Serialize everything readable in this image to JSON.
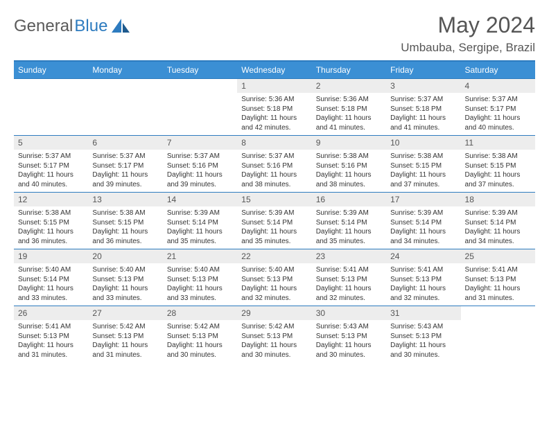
{
  "logo": {
    "part1": "General",
    "part2": "Blue"
  },
  "title": "May 2024",
  "location": "Umbauba, Sergipe, Brazil",
  "colors": {
    "header_bg": "#3b8fd4",
    "border": "#2d7bbf",
    "daynum_bg": "#ededed",
    "text": "#333333",
    "muted": "#555555"
  },
  "weekdays": [
    "Sunday",
    "Monday",
    "Tuesday",
    "Wednesday",
    "Thursday",
    "Friday",
    "Saturday"
  ],
  "weeks": [
    [
      {
        "n": "",
        "sr": "",
        "ss": "",
        "dl": "",
        "empty": true
      },
      {
        "n": "",
        "sr": "",
        "ss": "",
        "dl": "",
        "empty": true
      },
      {
        "n": "",
        "sr": "",
        "ss": "",
        "dl": "",
        "empty": true
      },
      {
        "n": "1",
        "sr": "Sunrise: 5:36 AM",
        "ss": "Sunset: 5:18 PM",
        "dl": "Daylight: 11 hours and 42 minutes."
      },
      {
        "n": "2",
        "sr": "Sunrise: 5:36 AM",
        "ss": "Sunset: 5:18 PM",
        "dl": "Daylight: 11 hours and 41 minutes."
      },
      {
        "n": "3",
        "sr": "Sunrise: 5:37 AM",
        "ss": "Sunset: 5:18 PM",
        "dl": "Daylight: 11 hours and 41 minutes."
      },
      {
        "n": "4",
        "sr": "Sunrise: 5:37 AM",
        "ss": "Sunset: 5:17 PM",
        "dl": "Daylight: 11 hours and 40 minutes."
      }
    ],
    [
      {
        "n": "5",
        "sr": "Sunrise: 5:37 AM",
        "ss": "Sunset: 5:17 PM",
        "dl": "Daylight: 11 hours and 40 minutes."
      },
      {
        "n": "6",
        "sr": "Sunrise: 5:37 AM",
        "ss": "Sunset: 5:17 PM",
        "dl": "Daylight: 11 hours and 39 minutes."
      },
      {
        "n": "7",
        "sr": "Sunrise: 5:37 AM",
        "ss": "Sunset: 5:16 PM",
        "dl": "Daylight: 11 hours and 39 minutes."
      },
      {
        "n": "8",
        "sr": "Sunrise: 5:37 AM",
        "ss": "Sunset: 5:16 PM",
        "dl": "Daylight: 11 hours and 38 minutes."
      },
      {
        "n": "9",
        "sr": "Sunrise: 5:38 AM",
        "ss": "Sunset: 5:16 PM",
        "dl": "Daylight: 11 hours and 38 minutes."
      },
      {
        "n": "10",
        "sr": "Sunrise: 5:38 AM",
        "ss": "Sunset: 5:15 PM",
        "dl": "Daylight: 11 hours and 37 minutes."
      },
      {
        "n": "11",
        "sr": "Sunrise: 5:38 AM",
        "ss": "Sunset: 5:15 PM",
        "dl": "Daylight: 11 hours and 37 minutes."
      }
    ],
    [
      {
        "n": "12",
        "sr": "Sunrise: 5:38 AM",
        "ss": "Sunset: 5:15 PM",
        "dl": "Daylight: 11 hours and 36 minutes."
      },
      {
        "n": "13",
        "sr": "Sunrise: 5:38 AM",
        "ss": "Sunset: 5:15 PM",
        "dl": "Daylight: 11 hours and 36 minutes."
      },
      {
        "n": "14",
        "sr": "Sunrise: 5:39 AM",
        "ss": "Sunset: 5:14 PM",
        "dl": "Daylight: 11 hours and 35 minutes."
      },
      {
        "n": "15",
        "sr": "Sunrise: 5:39 AM",
        "ss": "Sunset: 5:14 PM",
        "dl": "Daylight: 11 hours and 35 minutes."
      },
      {
        "n": "16",
        "sr": "Sunrise: 5:39 AM",
        "ss": "Sunset: 5:14 PM",
        "dl": "Daylight: 11 hours and 35 minutes."
      },
      {
        "n": "17",
        "sr": "Sunrise: 5:39 AM",
        "ss": "Sunset: 5:14 PM",
        "dl": "Daylight: 11 hours and 34 minutes."
      },
      {
        "n": "18",
        "sr": "Sunrise: 5:39 AM",
        "ss": "Sunset: 5:14 PM",
        "dl": "Daylight: 11 hours and 34 minutes."
      }
    ],
    [
      {
        "n": "19",
        "sr": "Sunrise: 5:40 AM",
        "ss": "Sunset: 5:14 PM",
        "dl": "Daylight: 11 hours and 33 minutes."
      },
      {
        "n": "20",
        "sr": "Sunrise: 5:40 AM",
        "ss": "Sunset: 5:13 PM",
        "dl": "Daylight: 11 hours and 33 minutes."
      },
      {
        "n": "21",
        "sr": "Sunrise: 5:40 AM",
        "ss": "Sunset: 5:13 PM",
        "dl": "Daylight: 11 hours and 33 minutes."
      },
      {
        "n": "22",
        "sr": "Sunrise: 5:40 AM",
        "ss": "Sunset: 5:13 PM",
        "dl": "Daylight: 11 hours and 32 minutes."
      },
      {
        "n": "23",
        "sr": "Sunrise: 5:41 AM",
        "ss": "Sunset: 5:13 PM",
        "dl": "Daylight: 11 hours and 32 minutes."
      },
      {
        "n": "24",
        "sr": "Sunrise: 5:41 AM",
        "ss": "Sunset: 5:13 PM",
        "dl": "Daylight: 11 hours and 32 minutes."
      },
      {
        "n": "25",
        "sr": "Sunrise: 5:41 AM",
        "ss": "Sunset: 5:13 PM",
        "dl": "Daylight: 11 hours and 31 minutes."
      }
    ],
    [
      {
        "n": "26",
        "sr": "Sunrise: 5:41 AM",
        "ss": "Sunset: 5:13 PM",
        "dl": "Daylight: 11 hours and 31 minutes."
      },
      {
        "n": "27",
        "sr": "Sunrise: 5:42 AM",
        "ss": "Sunset: 5:13 PM",
        "dl": "Daylight: 11 hours and 31 minutes."
      },
      {
        "n": "28",
        "sr": "Sunrise: 5:42 AM",
        "ss": "Sunset: 5:13 PM",
        "dl": "Daylight: 11 hours and 30 minutes."
      },
      {
        "n": "29",
        "sr": "Sunrise: 5:42 AM",
        "ss": "Sunset: 5:13 PM",
        "dl": "Daylight: 11 hours and 30 minutes."
      },
      {
        "n": "30",
        "sr": "Sunrise: 5:43 AM",
        "ss": "Sunset: 5:13 PM",
        "dl": "Daylight: 11 hours and 30 minutes."
      },
      {
        "n": "31",
        "sr": "Sunrise: 5:43 AM",
        "ss": "Sunset: 5:13 PM",
        "dl": "Daylight: 11 hours and 30 minutes."
      },
      {
        "n": "",
        "sr": "",
        "ss": "",
        "dl": "",
        "empty": true
      }
    ]
  ]
}
